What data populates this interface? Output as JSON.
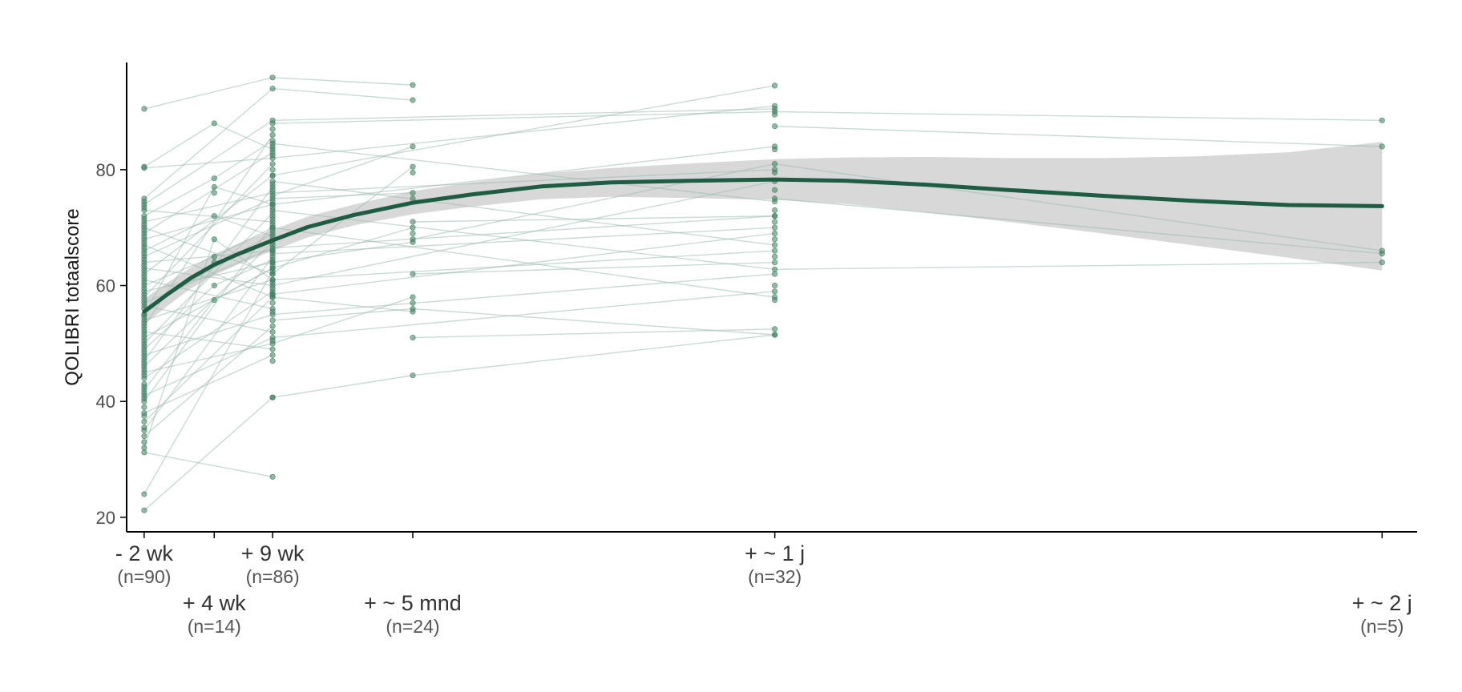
{
  "colors": {
    "accent": "#1e5c44",
    "points": "#3f7f61",
    "individual_lines": "#9fbcb0",
    "confidence_band": "#d4d4d4",
    "axis": "#000000",
    "background": "#ffffff"
  },
  "chart_data": {
    "type": "line",
    "title": "",
    "xlabel": "",
    "ylabel": "QOLIBRI totaalscore",
    "ylim": [
      17.5,
      98.5
    ],
    "xlim": [
      -3.5,
      107
    ],
    "yticks": [
      20,
      40,
      60,
      80
    ],
    "grid": false,
    "legend": "none",
    "x_ticks": [
      {
        "x": -2,
        "label": "- 2 wk",
        "n": "(n=90)",
        "row": 1
      },
      {
        "x": 4,
        "label": "+ 4 wk",
        "n": "(n=14)",
        "row": 2
      },
      {
        "x": 9,
        "label": "+ 9 wk",
        "n": "(n=86)",
        "row": 1
      },
      {
        "x": 21,
        "label": "+ ~ 5 mnd",
        "n": "(n=24)",
        "row": 2
      },
      {
        "x": 52,
        "label": "+ ~ 1 j",
        "n": "(n=32)",
        "row": 1
      },
      {
        "x": 104,
        "label": "+ ~ 2 j",
        "n": "(n=5)",
        "row": 2
      }
    ],
    "smooth": {
      "x": [
        -2,
        0,
        2,
        4,
        6,
        9,
        12,
        16,
        21,
        26,
        32,
        38,
        45,
        52,
        58,
        65,
        72,
        80,
        88,
        96,
        104
      ],
      "y": [
        55.5,
        58.5,
        61.3,
        63.6,
        65.4,
        67.8,
        70.1,
        72.2,
        74.3,
        75.7,
        77.1,
        77.8,
        78.1,
        78.3,
        78.1,
        77.4,
        76.5,
        75.5,
        74.6,
        73.9,
        73.7
      ],
      "lower": [
        53.3,
        56.5,
        59.5,
        61.8,
        63.6,
        66.0,
        68.3,
        70.4,
        72.3,
        73.6,
        74.9,
        75.3,
        75.1,
        74.8,
        74.1,
        72.6,
        71.0,
        69.0,
        66.9,
        64.8,
        62.6
      ],
      "upper": [
        57.7,
        60.5,
        63.1,
        65.4,
        67.2,
        69.6,
        71.9,
        74.0,
        76.3,
        77.8,
        79.3,
        80.3,
        81.1,
        81.8,
        82.1,
        82.2,
        82.0,
        82.0,
        82.3,
        83.0,
        84.8
      ]
    },
    "series": [
      {
        "x": [
          -2,
          9,
          21
        ],
        "y": [
          90.5,
          95.9,
          94.6
        ]
      },
      {
        "x": [
          -2,
          4,
          9
        ],
        "y": [
          80.5,
          88.0,
          83.5
        ]
      },
      {
        "x": [
          -2,
          9,
          52
        ],
        "y": [
          80.3,
          82.0,
          91.0
        ]
      },
      {
        "x": [
          -2,
          9,
          21
        ],
        "y": [
          75.0,
          94.0,
          92.0
        ]
      },
      {
        "x": [
          -2,
          9,
          52
        ],
        "y": [
          74.0,
          88.5,
          90.5
        ]
      },
      {
        "x": [
          -2,
          9
        ],
        "y": [
          73.0,
          71.0
        ]
      },
      {
        "x": [
          -2,
          4,
          9
        ],
        "y": [
          72.0,
          78.5,
          85.0
        ]
      },
      {
        "x": [
          -2,
          9,
          52
        ],
        "y": [
          71.0,
          76.0,
          80.0
        ]
      },
      {
        "x": [
          -2,
          9,
          21
        ],
        "y": [
          70.0,
          62.0,
          80.5
        ]
      },
      {
        "x": [
          -2,
          9
        ],
        "y": [
          69.0,
          83.0
        ]
      },
      {
        "x": [
          -2,
          9,
          52
        ],
        "y": [
          68.0,
          74.0,
          84.0
        ]
      },
      {
        "x": [
          -2,
          9
        ],
        "y": [
          67.0,
          58.0
        ]
      },
      {
        "x": [
          -2,
          4,
          9
        ],
        "y": [
          66.0,
          72.0,
          68.5
        ]
      },
      {
        "x": [
          -2,
          9,
          21
        ],
        "y": [
          65.0,
          75.0,
          76.0
        ]
      },
      {
        "x": [
          -2,
          9
        ],
        "y": [
          64.0,
          66.0
        ]
      },
      {
        "x": [
          -2,
          9,
          52
        ],
        "y": [
          63.0,
          60.0,
          78.0
        ]
      },
      {
        "x": [
          -2,
          9
        ],
        "y": [
          62.0,
          79.0
        ]
      },
      {
        "x": [
          -2,
          9
        ],
        "y": [
          61.0,
          56.0
        ]
      },
      {
        "x": [
          -2,
          4,
          9
        ],
        "y": [
          60.0,
          65.0,
          70.0
        ]
      },
      {
        "x": [
          -2,
          9,
          21
        ],
        "y": [
          59.0,
          64.0,
          67.5
        ]
      },
      {
        "x": [
          -2,
          9
        ],
        "y": [
          58.0,
          81.0
        ]
      },
      {
        "x": [
          -2,
          9,
          52
        ],
        "y": [
          57.0,
          66.5,
          72.0
        ]
      },
      {
        "x": [
          -2,
          9
        ],
        "y": [
          56.5,
          52.0
        ]
      },
      {
        "x": [
          -2,
          9
        ],
        "y": [
          56.0,
          69.0
        ]
      },
      {
        "x": [
          -2,
          4,
          9
        ],
        "y": [
          55.0,
          77.0,
          74.0
        ]
      },
      {
        "x": [
          -2,
          9,
          52
        ],
        "y": [
          54.0,
          61.0,
          66.0
        ]
      },
      {
        "x": [
          -2,
          9
        ],
        "y": [
          53.0,
          86.0
        ]
      },
      {
        "x": [
          -2,
          9
        ],
        "y": [
          52.0,
          49.0
        ]
      },
      {
        "x": [
          -2,
          9,
          21
        ],
        "y": [
          51.0,
          63.0,
          70.0
        ]
      },
      {
        "x": [
          -2,
          9
        ],
        "y": [
          50.0,
          72.5
        ]
      },
      {
        "x": [
          -2,
          4,
          9
        ],
        "y": [
          49.0,
          60.0,
          64.5
        ]
      },
      {
        "x": [
          -2,
          9,
          52
        ],
        "y": [
          48.0,
          55.0,
          62.0
        ]
      },
      {
        "x": [
          -2,
          9
        ],
        "y": [
          47.0,
          77.0
        ]
      },
      {
        "x": [
          -2,
          9
        ],
        "y": [
          46.0,
          67.5
        ]
      },
      {
        "x": [
          -2,
          9,
          21
        ],
        "y": [
          45.0,
          50.0,
          58.0
        ]
      },
      {
        "x": [
          -2,
          9
        ],
        "y": [
          44.0,
          59.0
        ]
      },
      {
        "x": [
          -2,
          4,
          9
        ],
        "y": [
          42.0,
          57.5,
          63.0
        ]
      },
      {
        "x": [
          -2,
          9,
          52
        ],
        "y": [
          41.0,
          51.0,
          59.0
        ]
      },
      {
        "x": [
          -2,
          9
        ],
        "y": [
          40.0,
          70.5
        ]
      },
      {
        "x": [
          -2,
          9
        ],
        "y": [
          38.0,
          48.0
        ]
      },
      {
        "x": [
          -2,
          9,
          21
        ],
        "y": [
          36.5,
          58.0,
          55.5
        ]
      },
      {
        "x": [
          -2,
          9
        ],
        "y": [
          35.0,
          65.0
        ]
      },
      {
        "x": [
          -2,
          9
        ],
        "y": [
          34.0,
          53.0
        ]
      },
      {
        "x": [
          -2,
          4,
          9
        ],
        "y": [
          32.0,
          68.0,
          61.0
        ]
      },
      {
        "x": [
          -2,
          9
        ],
        "y": [
          31.2,
          27.0
        ]
      },
      {
        "x": [
          -2,
          9
        ],
        "y": [
          24.0,
          62.5
        ]
      },
      {
        "x": [
          -2,
          9
        ],
        "y": [
          21.2,
          40.7
        ]
      },
      {
        "x": [
          9,
          21,
          52
        ],
        "y": [
          54.0,
          56.0,
          51.5
        ]
      },
      {
        "x": [
          9,
          21,
          52
        ],
        "y": [
          40.7,
          44.5,
          51.5
        ]
      },
      {
        "x": [
          9,
          21
        ],
        "y": [
          75.5,
          84.0
        ]
      },
      {
        "x": [
          21,
          52,
          104
        ],
        "y": [
          68.0,
          81.0,
          66.0
        ]
      },
      {
        "x": [
          9,
          52
        ],
        "y": [
          58.5,
          69.0
        ]
      },
      {
        "x": [
          21,
          52
        ],
        "y": [
          62.0,
          64.0
        ]
      },
      {
        "x": [
          9,
          52,
          104
        ],
        "y": [
          88.0,
          90.0,
          88.5
        ]
      },
      {
        "x": [
          9,
          52,
          104
        ],
        "y": [
          73.0,
          62.8,
          64.0
        ]
      },
      {
        "x": [
          52,
          104
        ],
        "y": [
          87.5,
          84.0
        ]
      },
      {
        "x": [
          9,
          52
        ],
        "y": [
          79.0,
          94.5
        ]
      },
      {
        "x": [
          9,
          52
        ],
        "y": [
          84.5,
          74.5
        ]
      },
      {
        "x": [
          9,
          52
        ],
        "y": [
          70.0,
          58.0
        ]
      },
      {
        "x": [
          9,
          52
        ],
        "y": [
          65.5,
          70.0
        ]
      },
      {
        "x": [
          21,
          52
        ],
        "y": [
          71.0,
          72.0
        ]
      },
      {
        "x": [
          21,
          52
        ],
        "y": [
          51.0,
          52.5
        ]
      },
      {
        "x": [
          9,
          52
        ],
        "y": [
          78.0,
          67.0
        ]
      },
      {
        "x": [
          52,
          104
        ],
        "y": [
          75.0,
          65.5
        ]
      }
    ],
    "extra_points": [
      {
        "x": -2,
        "y": [
          74.5,
          73.5,
          71.5,
          70.5,
          69.5,
          68.5,
          67.5,
          66.5,
          65.5,
          64.5,
          63.5,
          62.5,
          61.5,
          60.5,
          59.5,
          58.5,
          57.5,
          55.0,
          54.5,
          53.5,
          52.5,
          51.5,
          50.5,
          49.5,
          48.5,
          47.5,
          46.5,
          45.5,
          44.5,
          43.0,
          42.5,
          41.5,
          40.5,
          39.0,
          37.5,
          35.5,
          33.0
        ]
      },
      {
        "x": 4,
        "y": [
          76.0,
          64.0
        ]
      },
      {
        "x": 9,
        "y": [
          87.0,
          84.0,
          82.5,
          80.0,
          77.5,
          76.5,
          74.5,
          73.5,
          72.0,
          71.5,
          69.5,
          68.0,
          67.0,
          66.0,
          64.0,
          63.5,
          62.0,
          60.5,
          59.5,
          58.5,
          57.0,
          55.5,
          50.5,
          47.0
        ]
      },
      {
        "x": 21,
        "y": [
          79.5,
          75.0,
          69.0,
          57.0
        ]
      },
      {
        "x": 52,
        "y": [
          89.5,
          83.5,
          79.5,
          76.5,
          73.0,
          71.0,
          68.0,
          65.0,
          60.0,
          57.5
        ]
      }
    ]
  }
}
